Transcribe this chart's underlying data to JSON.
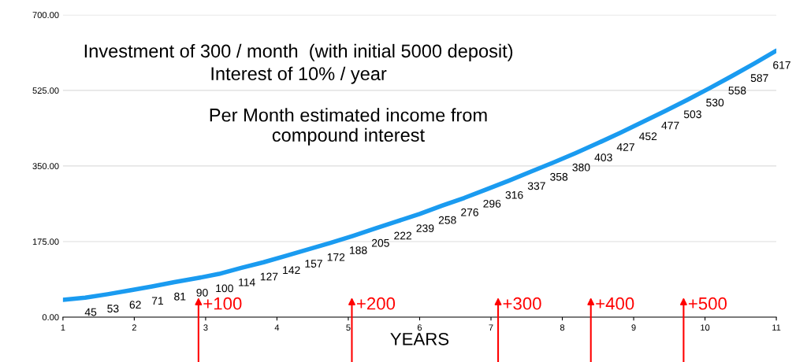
{
  "chart_data": {
    "type": "line",
    "title": "Investment of 300 / month  (with initial 5000 deposit)",
    "subtitle": "Interest of 10% / year",
    "xlabel": "YEARS",
    "annotations": [
      "Per Month estimated income from compound interest",
      "+100",
      "+200",
      "+300",
      "+400",
      "+500"
    ],
    "x": [
      1,
      1.3125,
      1.625,
      1.9375,
      2.25,
      2.5625,
      2.875,
      3.1875,
      3.5,
      3.8125,
      4.125,
      4.4375,
      4.75,
      5.0625,
      5.375,
      5.6875,
      6,
      6.3125,
      6.625,
      6.9375,
      7.25,
      7.5625,
      7.875,
      8.1875,
      8.5,
      8.8125,
      9.125,
      9.4375,
      9.75,
      10.0625,
      10.375,
      10.6875,
      11
    ],
    "series": [
      {
        "color": "#1a9bf0",
        "values": [
          40,
          45,
          53,
          62,
          71,
          81,
          90,
          100,
          114,
          127,
          142,
          157,
          172,
          188,
          205,
          222,
          239,
          258,
          276,
          296,
          316,
          337,
          358,
          380,
          403,
          427,
          452,
          477,
          503,
          530,
          558,
          587,
          617
        ],
        "value_labels": [
          null,
          "45",
          "53",
          "62",
          "71",
          "81",
          "90",
          "100",
          "114",
          "127",
          "142",
          "157",
          "172",
          "188",
          "205",
          "222",
          "239",
          "258",
          "276",
          "296",
          "316",
          "337",
          "358",
          "380",
          "403",
          "427",
          "452",
          "477",
          "503",
          "530",
          "558",
          "587",
          "617"
        ]
      }
    ],
    "xlim": [
      1,
      11
    ],
    "xticks": [
      1,
      2,
      3,
      4,
      5,
      6,
      7,
      8,
      9,
      10,
      11
    ],
    "ylim": [
      0,
      700
    ],
    "yticks": [
      {
        "value": 0,
        "label": "0.00"
      },
      {
        "value": 175,
        "label": "175.00"
      },
      {
        "value": 350,
        "label": "350.00"
      },
      {
        "value": 525,
        "label": "525.00"
      },
      {
        "value": 700,
        "label": "700.00"
      }
    ],
    "grid": "y",
    "legend": false,
    "marker": "none",
    "line_style": "solid"
  }
}
